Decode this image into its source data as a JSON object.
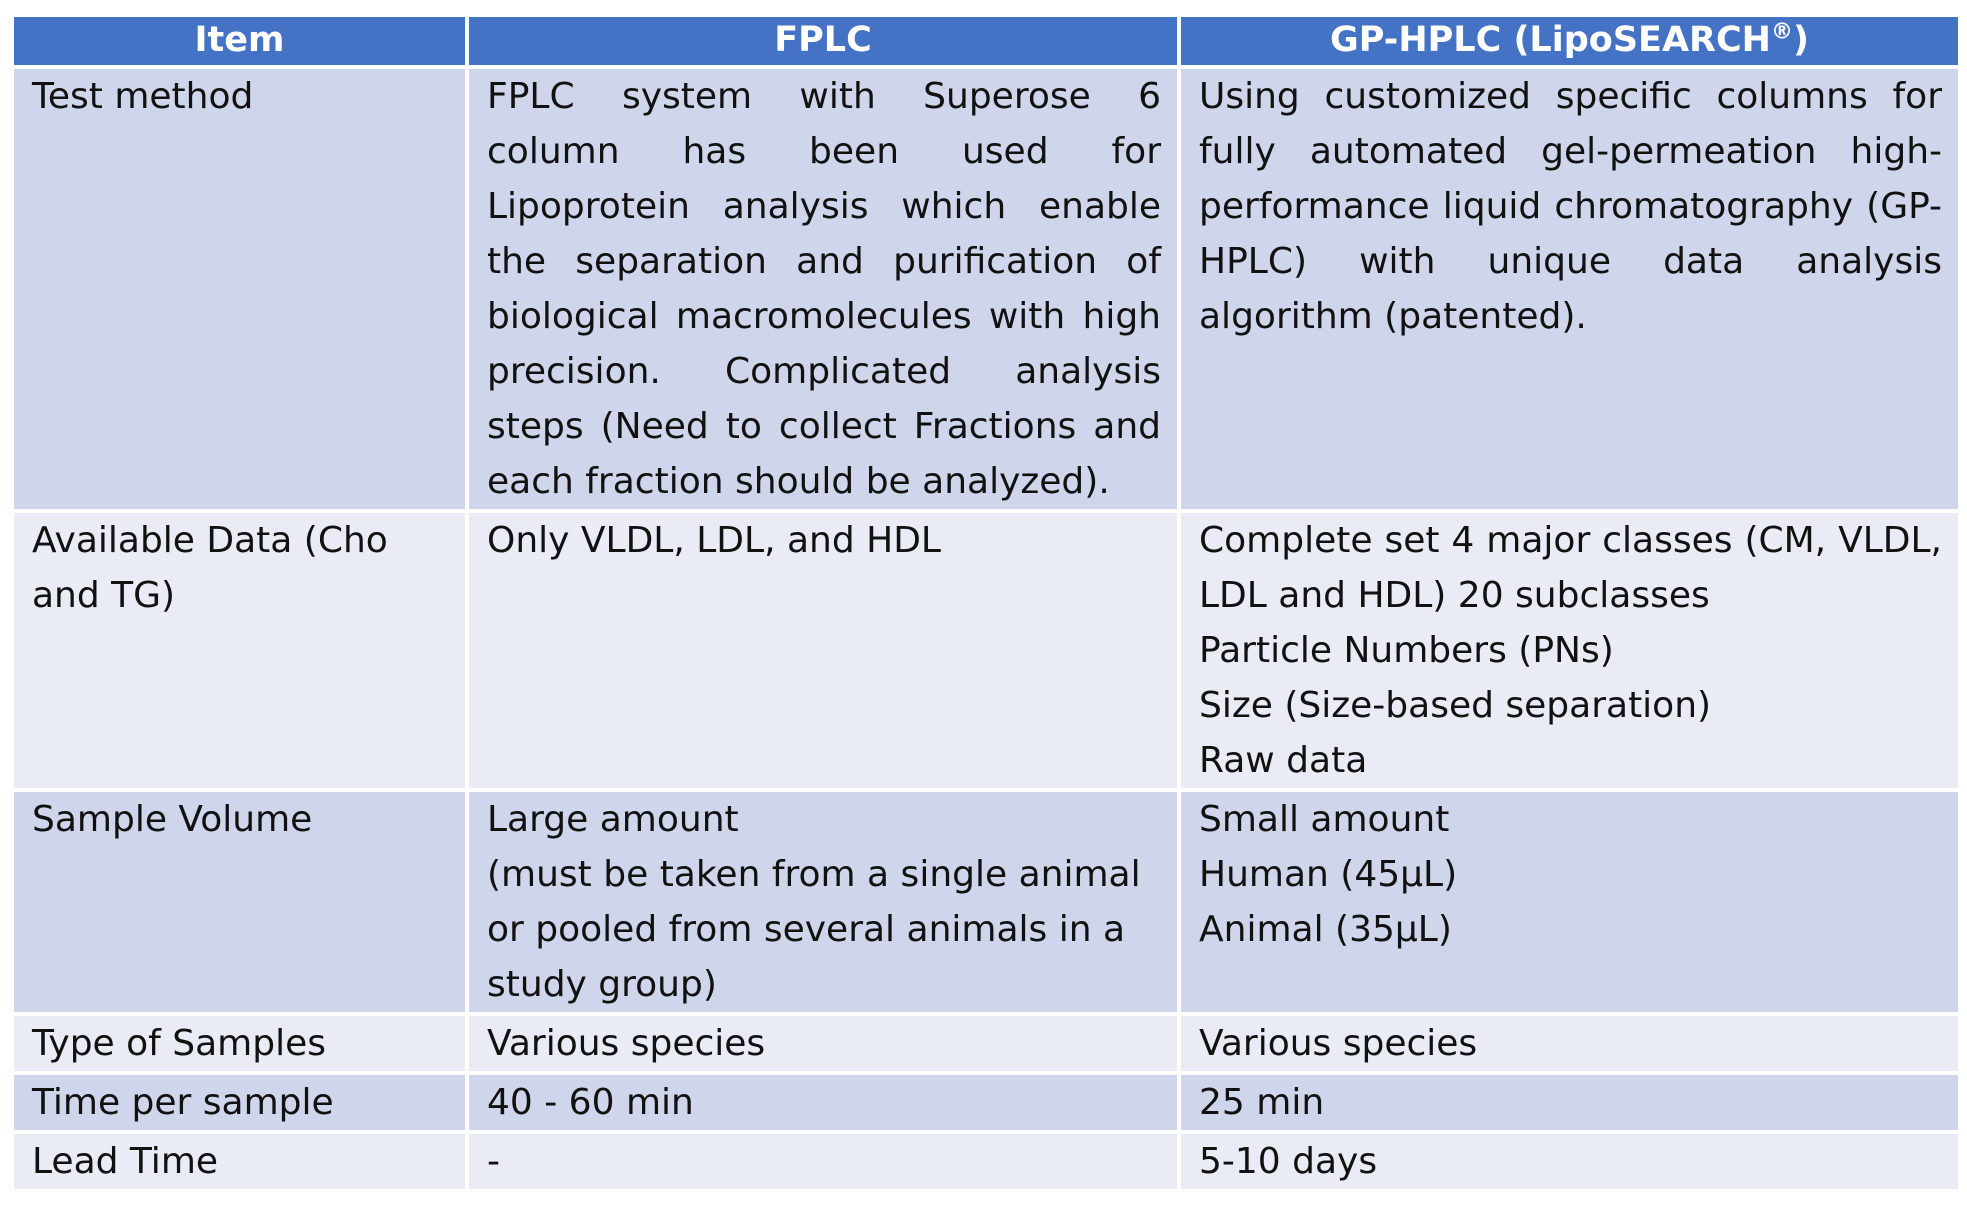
{
  "table": {
    "headers": {
      "item": "Item",
      "fplc": "FPLC",
      "gp_hplc_prefix": "GP-HPLC (LipoSEARCH",
      "gp_hplc_mark": "®",
      "gp_hplc_suffix": ")"
    },
    "rows": [
      {
        "item": "Test method",
        "fplc": "FPLC system with Superose 6 column has been used for Lipoprotein analysis which enable the separation and purification of biological macromolecules with high precision. Complicated analysis steps (Need to collect Fractions and each fraction should be analyzed).",
        "gp_hplc": "Using customized specific columns for fully automated gel-permeation high-performance liquid chromatography (GP-HPLC) with unique data analysis algorithm (patented)."
      },
      {
        "item": "Available Data (Cho and TG)",
        "fplc": "Only VLDL, LDL, and HDL",
        "gp_hplc_lines": [
          "Complete set 4 major classes (CM, VLDL, LDL and HDL) 20 subclasses",
          "Particle Numbers (PNs)",
          "Size (Size-based separation)",
          "Raw data"
        ]
      },
      {
        "item": "Sample Volume",
        "fplc_lines": [
          "Large amount",
          "(must be taken from a single animal or pooled from several animals in a study group)"
        ],
        "gp_hplc_lines": [
          "Small amount",
          "Human (45μL)",
          "Animal (35μL)"
        ]
      },
      {
        "item": "Type of Samples",
        "fplc": "Various species",
        "gp_hplc": "Various species"
      },
      {
        "item": "Time per sample",
        "fplc": "40 - 60 min",
        "gp_hplc": "25 min"
      },
      {
        "item": "Lead Time",
        "fplc": "-",
        "gp_hplc": "5-10 days"
      }
    ]
  },
  "colors": {
    "header_background": "#4472c4",
    "row_background": "#cfd5ea",
    "row_alt_background": "#e9ebf5",
    "header_text": "#ffffff",
    "body_text": "#111111"
  }
}
